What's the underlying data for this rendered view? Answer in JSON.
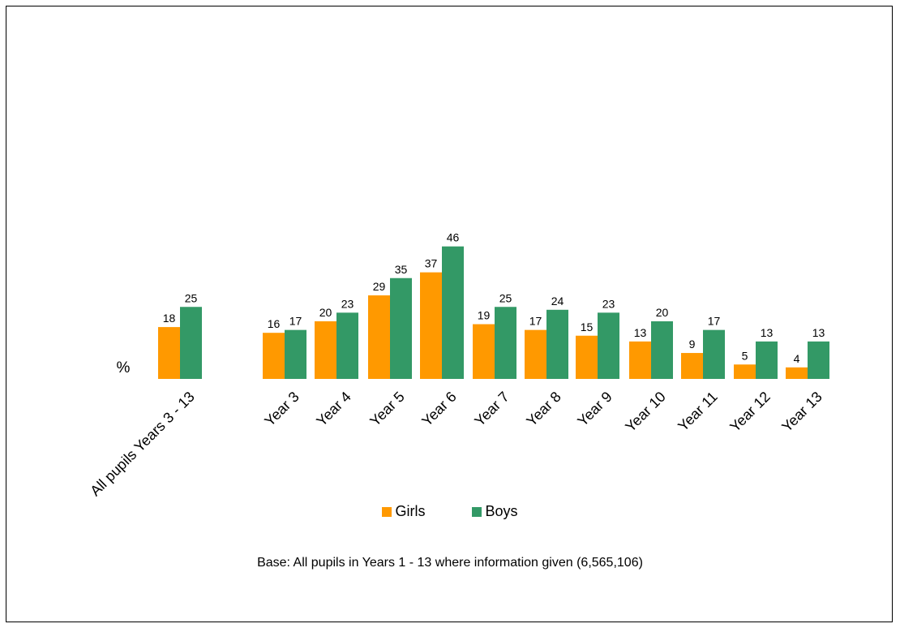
{
  "colors": {
    "girls": "#FF9900",
    "boys": "#339966"
  },
  "chart_data": {
    "type": "bar",
    "ylabel": "%",
    "categories": [
      "All pupils Years 3 - 13",
      "Year 3",
      "Year 4",
      "Year 5",
      "Year 6",
      "Year 7",
      "Year 8",
      "Year 9",
      "Year 10",
      "Year 11",
      "Year 12",
      "Year 13"
    ],
    "series": [
      {
        "name": "Girls",
        "values": [
          18,
          16,
          20,
          29,
          37,
          19,
          17,
          15,
          13,
          9,
          5,
          4
        ]
      },
      {
        "name": "Boys",
        "values": [
          25,
          17,
          23,
          35,
          46,
          25,
          24,
          23,
          20,
          17,
          13,
          13
        ]
      }
    ],
    "legend_position": "bottom",
    "grid": false
  },
  "legend": {
    "girls": "Girls",
    "boys": "Boys"
  },
  "note": "Base: All pupils in Years 1 - 13 where information given (6,565,106)"
}
